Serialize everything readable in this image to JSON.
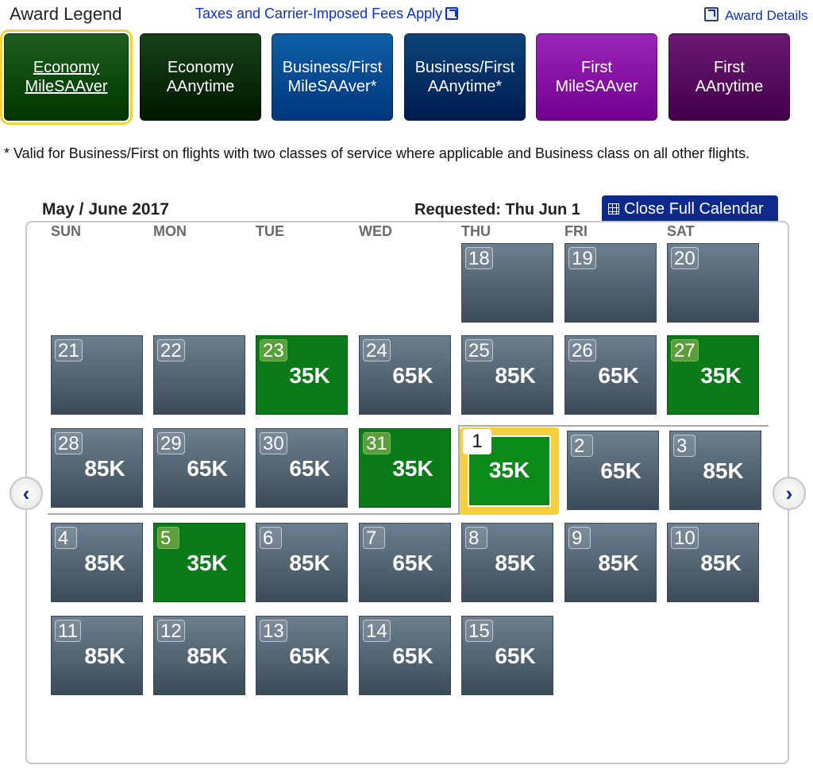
{
  "legend": {
    "title": "Award Legend",
    "fees_link": "Taxes and Carrier-Imposed Fees Apply",
    "details_link": "Award Details",
    "buttons": [
      {
        "line1": "Economy",
        "line2": "MileSAAver",
        "color": "#1e5e1e",
        "selected": true
      },
      {
        "line1": "Economy",
        "line2": "AAnytime",
        "color": "#174017",
        "selected": false
      },
      {
        "line1": "Business/First",
        "line2": "MileSAAver*",
        "color": "#0e5fa6",
        "selected": false
      },
      {
        "line1": "Business/First",
        "line2": "AAnytime*",
        "color": "#0c4479",
        "selected": false
      },
      {
        "line1": "First",
        "line2": "MileSAAver",
        "color": "#9a25b8",
        "selected": false
      },
      {
        "line1": "First",
        "line2": "AAnytime",
        "color": "#6b1a73",
        "selected": false
      }
    ],
    "note": "* Valid for Business/First on flights with two classes of service where applicable and Business class on all other flights."
  },
  "calendar": {
    "title": "May / June 2017",
    "requested": "Requested: Thu Jun 1",
    "close_label": "Close Full Calendar",
    "weekdays": [
      "SUN",
      "MON",
      "TUE",
      "WED",
      "THU",
      "FRI",
      "SAT"
    ],
    "weeks": [
      [
        null,
        null,
        null,
        null,
        {
          "day": "18",
          "price": ""
        },
        {
          "day": "19",
          "price": ""
        },
        {
          "day": "20",
          "price": ""
        }
      ],
      [
        {
          "day": "21",
          "price": ""
        },
        {
          "day": "22",
          "price": ""
        },
        {
          "day": "23",
          "price": "35K",
          "green": true
        },
        {
          "day": "24",
          "price": "65K"
        },
        {
          "day": "25",
          "price": "85K"
        },
        {
          "day": "26",
          "price": "65K"
        },
        {
          "day": "27",
          "price": "35K",
          "green": true
        }
      ],
      [
        {
          "day": "28",
          "price": "85K"
        },
        {
          "day": "29",
          "price": "65K"
        },
        {
          "day": "30",
          "price": "65K"
        },
        {
          "day": "31",
          "price": "35K",
          "green": true
        },
        {
          "day": "1",
          "price": "35K",
          "green": true,
          "requested": true
        },
        {
          "day": "2",
          "price": "65K"
        },
        {
          "day": "3",
          "price": "85K"
        }
      ],
      [
        {
          "day": "4",
          "price": "85K"
        },
        {
          "day": "5",
          "price": "35K",
          "green": true
        },
        {
          "day": "6",
          "price": "85K"
        },
        {
          "day": "7",
          "price": "65K"
        },
        {
          "day": "8",
          "price": "85K"
        },
        {
          "day": "9",
          "price": "85K"
        },
        {
          "day": "10",
          "price": "85K"
        }
      ],
      [
        {
          "day": "11",
          "price": "85K"
        },
        {
          "day": "12",
          "price": "85K"
        },
        {
          "day": "13",
          "price": "65K"
        },
        {
          "day": "14",
          "price": "65K"
        },
        {
          "day": "15",
          "price": "65K"
        },
        null,
        null
      ]
    ]
  },
  "nav": {
    "prev_glyph": "‹",
    "next_glyph": "›"
  }
}
